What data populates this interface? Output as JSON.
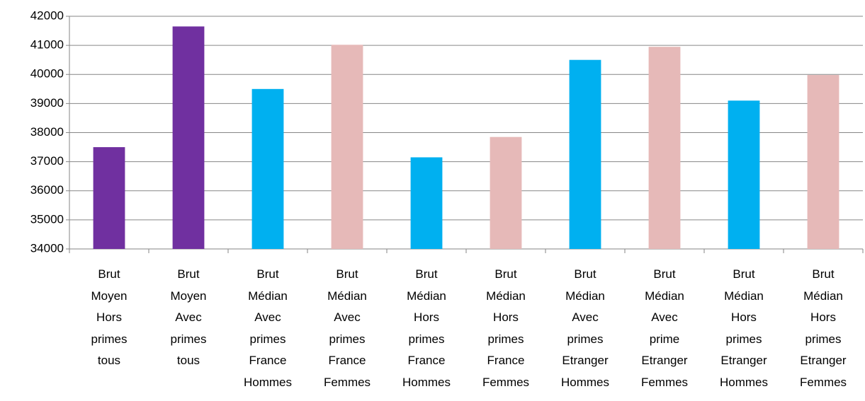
{
  "chart_data": {
    "type": "bar",
    "categories": [
      "Brut Moyen Hors primes tous",
      "Brut Moyen Avec primes tous",
      "Brut Médian Avec primes France Hommes",
      "Brut Médian Avec primes France Femmes",
      "Brut Médian Hors primes France Hommes",
      "Brut Médian Hors primes France Femmes",
      "Brut Médian Avec primes Etranger Hommes",
      "Brut Médian Avec prime Etranger Femmes",
      "Brut Médian Hors primes Etranger Hommes",
      "Brut Médian Hors primes Etranger Femmes"
    ],
    "values": [
      37500,
      41650,
      39500,
      41020,
      37150,
      37850,
      40500,
      40950,
      39100,
      39980
    ],
    "colors": [
      "#7030a0",
      "#7030a0",
      "#00b0f0",
      "#e6b9b8",
      "#00b0f0",
      "#e6b9b8",
      "#00b0f0",
      "#e6b9b8",
      "#00b0f0",
      "#e6b9b8"
    ],
    "ylim": [
      34000,
      42000
    ],
    "yticks": [
      34000,
      35000,
      36000,
      37000,
      38000,
      39000,
      40000,
      41000,
      42000
    ],
    "grid": true
  }
}
